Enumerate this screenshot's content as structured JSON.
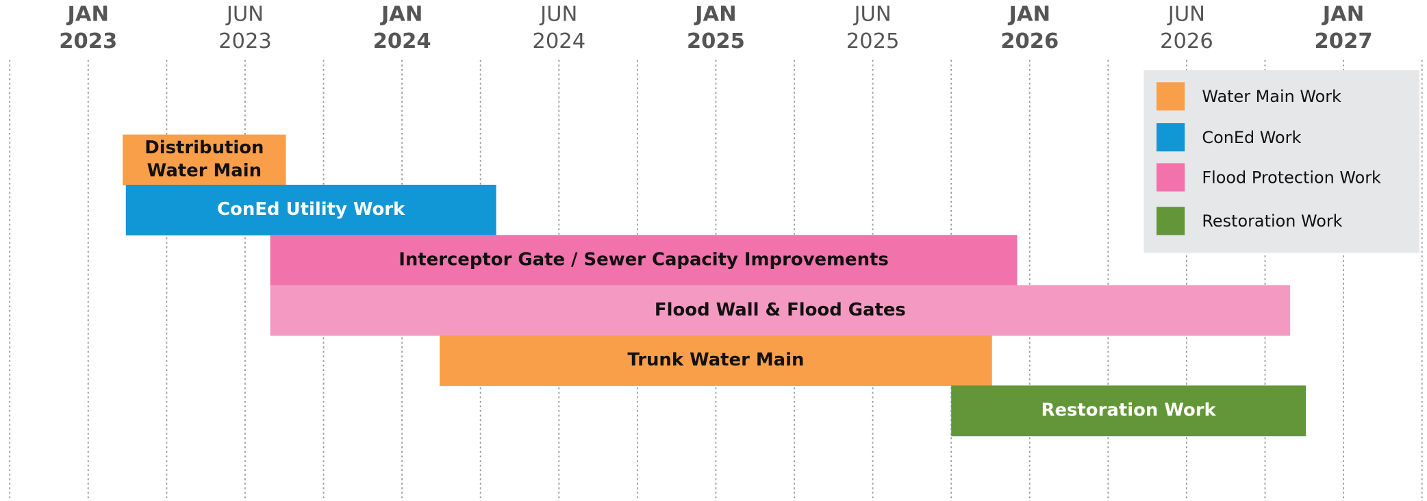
{
  "chart_data": {
    "type": "gantt",
    "xlim": [
      2022.72,
      2027.265
    ],
    "xticks": [
      {
        "value": 2023,
        "label": [
          "JAN",
          "2023"
        ]
      },
      {
        "value": 2023.5,
        "label": [
          "JUN",
          "2023"
        ]
      },
      {
        "value": 2024,
        "label": [
          "JAN",
          "2024"
        ]
      },
      {
        "value": 2024.5,
        "label": [
          "JUN",
          "2024"
        ]
      },
      {
        "value": 2025,
        "label": [
          "JAN",
          "2025"
        ]
      },
      {
        "value": 2025.5,
        "label": [
          "JUN",
          "2025"
        ]
      },
      {
        "value": 2026,
        "label": [
          "JAN",
          "2026"
        ]
      },
      {
        "value": 2026.5,
        "label": [
          "JUN",
          "2026"
        ]
      },
      {
        "value": 2027,
        "label": [
          "JAN",
          "2027"
        ]
      }
    ],
    "xgrid": [
      2022.75,
      2023,
      2023.25,
      2023.5,
      2023.75,
      2024,
      2024.25,
      2024.5,
      2024.75,
      2025,
      2025.25,
      2025.5,
      2025.75,
      2026,
      2026.25,
      2026.5,
      2026.75,
      2027,
      2027.25
    ],
    "series": [
      {
        "name": "Water Main Work",
        "color": "#f99f4a"
      },
      {
        "name": "ConEd Work",
        "color": "#1197d6"
      },
      {
        "name": "Flood Protection Work",
        "color": "#f272ab"
      },
      {
        "name": "Restoration Work",
        "color": "#629638"
      }
    ],
    "tasks": [
      {
        "label": [
          "Distribution",
          "Water Main"
        ],
        "start": 2023.11,
        "end": 2023.63,
        "color": "#f99f4a",
        "text_color": "#111111"
      },
      {
        "label": [
          "ConEd Utility Work"
        ],
        "start": 2023.12,
        "end": 2024.3,
        "color": "#1197d6",
        "text_color": "#ffffff"
      },
      {
        "label": [
          "Interceptor Gate / Sewer Capacity Improvements"
        ],
        "start": 2023.58,
        "end": 2025.96,
        "color": "#f272ab",
        "text_color": "#111111"
      },
      {
        "label": [
          "Flood Wall & Flood Gates"
        ],
        "start": 2023.58,
        "end": 2026.83,
        "color": "#f49ac2",
        "text_color": "#111111"
      },
      {
        "label": [
          "Trunk Water Main"
        ],
        "start": 2024.12,
        "end": 2025.88,
        "color": "#f99f4a",
        "text_color": "#111111"
      },
      {
        "label": [
          "Restoration Work"
        ],
        "start": 2025.75,
        "end": 2026.88,
        "color": "#629638",
        "text_color": "#ffffff"
      }
    ]
  }
}
